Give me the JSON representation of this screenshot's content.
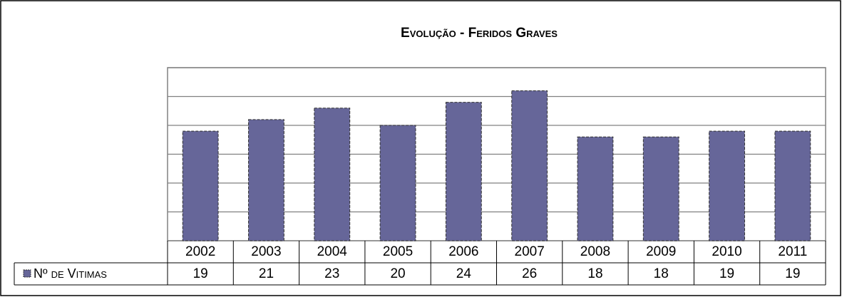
{
  "chart_data": {
    "type": "bar",
    "title": "Evolução - Feridos Graves",
    "categories": [
      "2002",
      "2003",
      "2004",
      "2005",
      "2006",
      "2007",
      "2008",
      "2009",
      "2010",
      "2011"
    ],
    "series": [
      {
        "name": "Nº de Vitimas",
        "color": "#666699",
        "values": [
          19,
          21,
          23,
          20,
          24,
          26,
          18,
          18,
          19,
          19
        ]
      }
    ],
    "ylim": [
      0,
      30
    ],
    "yticks": [
      0,
      5,
      10,
      15,
      20,
      25,
      30
    ],
    "grid": true
  }
}
